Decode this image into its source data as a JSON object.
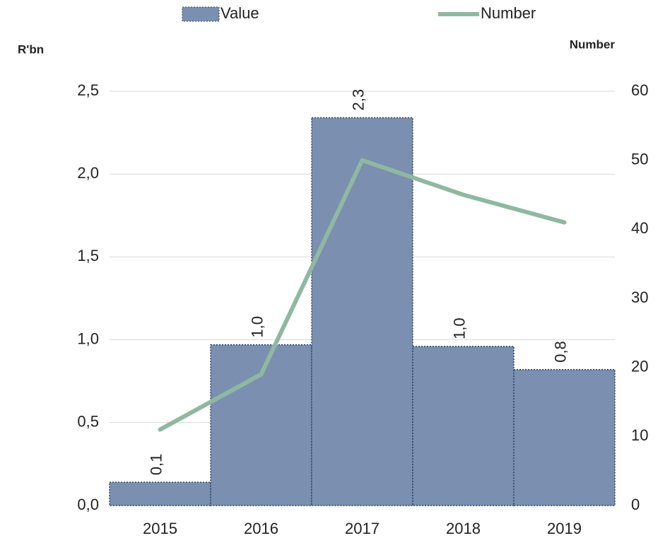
{
  "chart_data": {
    "type": "bar_line",
    "categories": [
      "2015",
      "2016",
      "2017",
      "2018",
      "2019"
    ],
    "series": [
      {
        "name": "Value",
        "type": "bar",
        "color": "#7b8fb0",
        "values": [
          0.14,
          0.97,
          2.34,
          0.96,
          0.82
        ],
        "value_labels": [
          "0,1",
          "1,0",
          "2,3",
          "1,0",
          "0,8"
        ]
      },
      {
        "name": "Number",
        "type": "line",
        "axis": "y2",
        "color": "#8fb8a0",
        "values": [
          11,
          19,
          50,
          45,
          41
        ]
      }
    ],
    "y_label": "R'bn",
    "y2_label": "Number",
    "ylim": [
      0,
      2.5
    ],
    "yticks": [
      {
        "value": 0,
        "label": "0,0"
      },
      {
        "value": 0.5,
        "label": "0,5"
      },
      {
        "value": 1,
        "label": "1,0"
      },
      {
        "value": 1.5,
        "label": "1,5"
      },
      {
        "value": 2,
        "label": "2,0"
      },
      {
        "value": 2.5,
        "label": "2,5"
      }
    ],
    "y2lim": [
      0,
      60
    ],
    "y2ticks": [
      0,
      10,
      20,
      30,
      40,
      50,
      60
    ],
    "grid": true,
    "legend": "top"
  }
}
